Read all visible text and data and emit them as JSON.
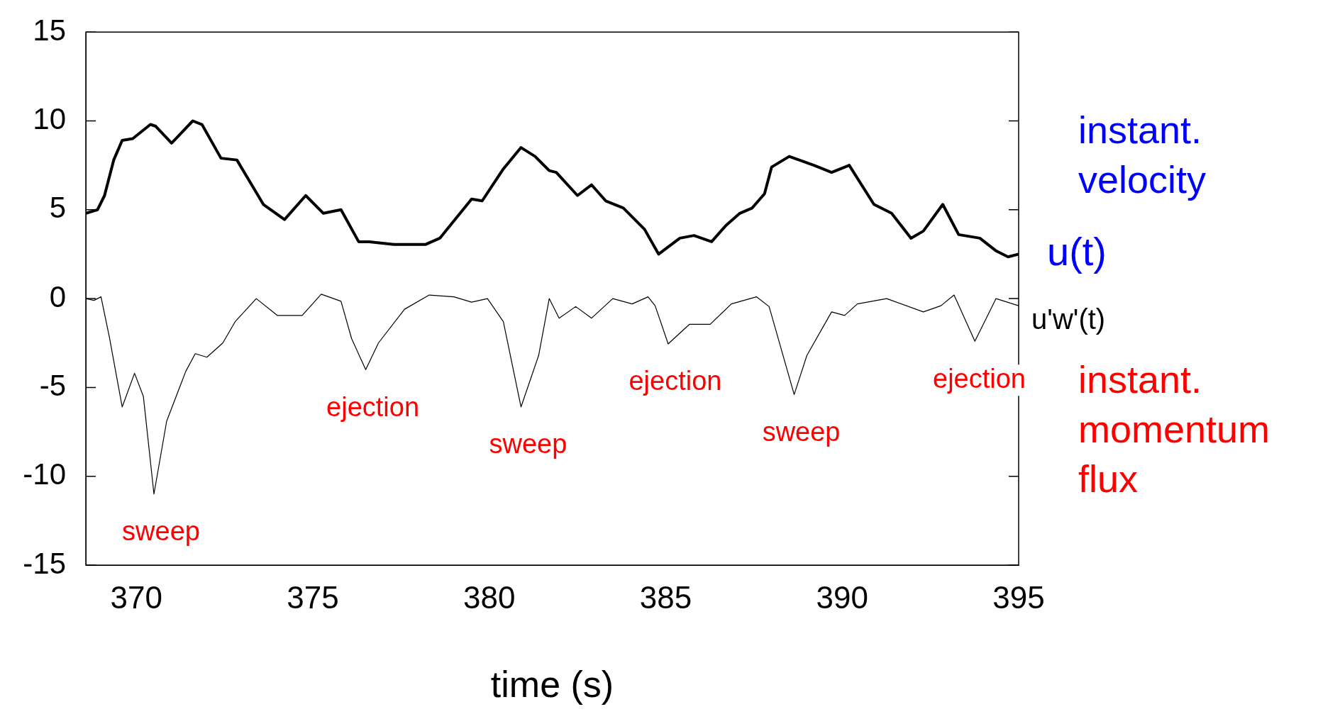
{
  "chart_data": {
    "type": "line",
    "xlabel": "time (s)",
    "xlim": [
      368.57,
      395
    ],
    "xticks": [
      370,
      375,
      380,
      385,
      390,
      395
    ],
    "ylim": [
      -15,
      15
    ],
    "yticks": [
      -15,
      -10,
      -5,
      0,
      5,
      10,
      15
    ],
    "grid": false,
    "legend": "right",
    "marker": "none",
    "line_style": "solid",
    "series": [
      {
        "name": "u(t)",
        "color": "#000000",
        "x": [
          368.57,
          368.9,
          369.1,
          369.36,
          369.6,
          369.9,
          370.4,
          370.55,
          371.0,
          371.6,
          371.86,
          372.4,
          372.85,
          373.6,
          374.2,
          374.8,
          375.3,
          375.8,
          376.3,
          376.6,
          377.3,
          378.2,
          378.6,
          379.5,
          379.8,
          380.4,
          380.9,
          381.3,
          381.7,
          381.9,
          382.5,
          382.9,
          383.3,
          383.8,
          384.4,
          384.8,
          385.4,
          385.8,
          386.3,
          386.7,
          387.1,
          387.45,
          387.8,
          388.0,
          388.5,
          389.2,
          389.7,
          390.2,
          390.9,
          391.4,
          391.95,
          392.3,
          392.85,
          393.3,
          393.9,
          394.35,
          394.7,
          395.0
        ],
        "values": [
          4.8,
          5.0,
          5.8,
          7.8,
          8.9,
          9.0,
          9.8,
          9.7,
          8.75,
          10.0,
          9.8,
          7.9,
          7.8,
          5.3,
          4.45,
          5.8,
          4.8,
          5.0,
          3.2,
          3.2,
          3.05,
          3.05,
          3.4,
          5.6,
          5.5,
          7.3,
          8.5,
          8.0,
          7.2,
          7.1,
          5.8,
          6.4,
          5.5,
          5.1,
          3.9,
          2.5,
          3.4,
          3.55,
          3.2,
          4.1,
          4.8,
          5.1,
          5.9,
          7.4,
          8.0,
          7.5,
          7.1,
          7.5,
          5.3,
          4.8,
          3.4,
          3.8,
          5.3,
          3.6,
          3.4,
          2.7,
          2.35,
          2.5
        ]
      },
      {
        "name": "u'w'(t)",
        "color": "#000000",
        "x": [
          368.57,
          368.8,
          369.0,
          369.24,
          369.6,
          369.95,
          370.2,
          370.5,
          370.86,
          371.4,
          371.67,
          372.0,
          372.45,
          372.8,
          373.4,
          374.0,
          374.7,
          375.24,
          375.8,
          376.1,
          376.5,
          376.86,
          377.6,
          378.3,
          379.0,
          379.5,
          379.95,
          380.4,
          380.9,
          381.4,
          381.7,
          381.98,
          382.45,
          382.9,
          383.5,
          384.05,
          384.5,
          384.7,
          385.07,
          385.67,
          386.26,
          386.86,
          387.57,
          387.93,
          388.64,
          389.0,
          389.7,
          390.07,
          390.43,
          391.26,
          392.3,
          392.8,
          393.17,
          393.76,
          394.36,
          395.0
        ],
        "values": [
          0,
          -0.1,
          0.1,
          -2.2,
          -6.1,
          -4.2,
          -5.5,
          -11.0,
          -6.9,
          -4.1,
          -3.1,
          -3.3,
          -2.5,
          -1.3,
          0,
          -0.95,
          -0.95,
          0.25,
          -0.15,
          -2.25,
          -4.0,
          -2.5,
          -0.6,
          0.2,
          0.1,
          -0.2,
          0,
          -1.3,
          -6.1,
          -3.2,
          0,
          -1.1,
          -0.45,
          -1.1,
          0,
          -0.3,
          0.1,
          -0.4,
          -2.55,
          -1.45,
          -1.45,
          -0.3,
          0.1,
          -0.45,
          -5.4,
          -3.2,
          -0.75,
          -0.95,
          -0.3,
          0,
          -0.75,
          -0.4,
          0.2,
          -2.4,
          0,
          -0.4
        ]
      }
    ],
    "annotations": [
      "instant. velocity",
      "instant. momentum flux",
      {
        "text": "sweep",
        "x": 370.5,
        "y": -11.0
      },
      {
        "text": "ejection",
        "x": 376.5,
        "y": -4.0
      },
      {
        "text": "sweep",
        "x": 380.9,
        "y": -6.1
      },
      {
        "text": "ejection",
        "x": 385.07,
        "y": -2.55
      },
      {
        "text": "sweep",
        "x": 388.64,
        "y": -5.4
      },
      {
        "text": "ejection",
        "x": 393.76,
        "y": -2.4
      }
    ]
  }
}
